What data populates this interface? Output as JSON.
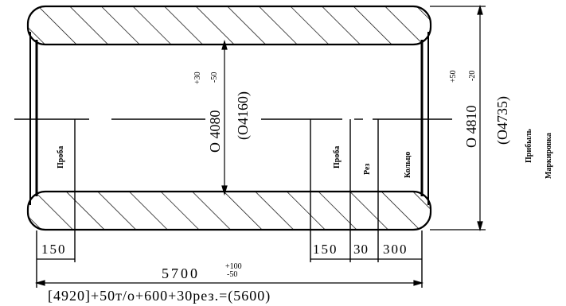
{
  "drawing": {
    "labels": {
      "proba_left": "Проба",
      "proba_right": "Проба",
      "rez": "Рез",
      "koltso": "Кольцо",
      "pribyl": "Прибыль",
      "markirovka": "Маркировка"
    },
    "dimensions": {
      "inner_diam": "О 4080",
      "inner_tol_plus": "+30",
      "inner_tol_minus": "-50",
      "inner_ref": "(О4160)",
      "outer_diam": "О 4810",
      "outer_tol_plus": "+50",
      "outer_tol_minus": "-20",
      "outer_ref": "(О4735)",
      "left_150": "150",
      "right_150": "150",
      "right_30": "30",
      "right_300": "300",
      "length": "5700",
      "length_tol_plus": "+100",
      "length_tol_minus": "-50",
      "bottom_formula": "[4920]+50т/о+600+30рез.=(5600)"
    }
  }
}
